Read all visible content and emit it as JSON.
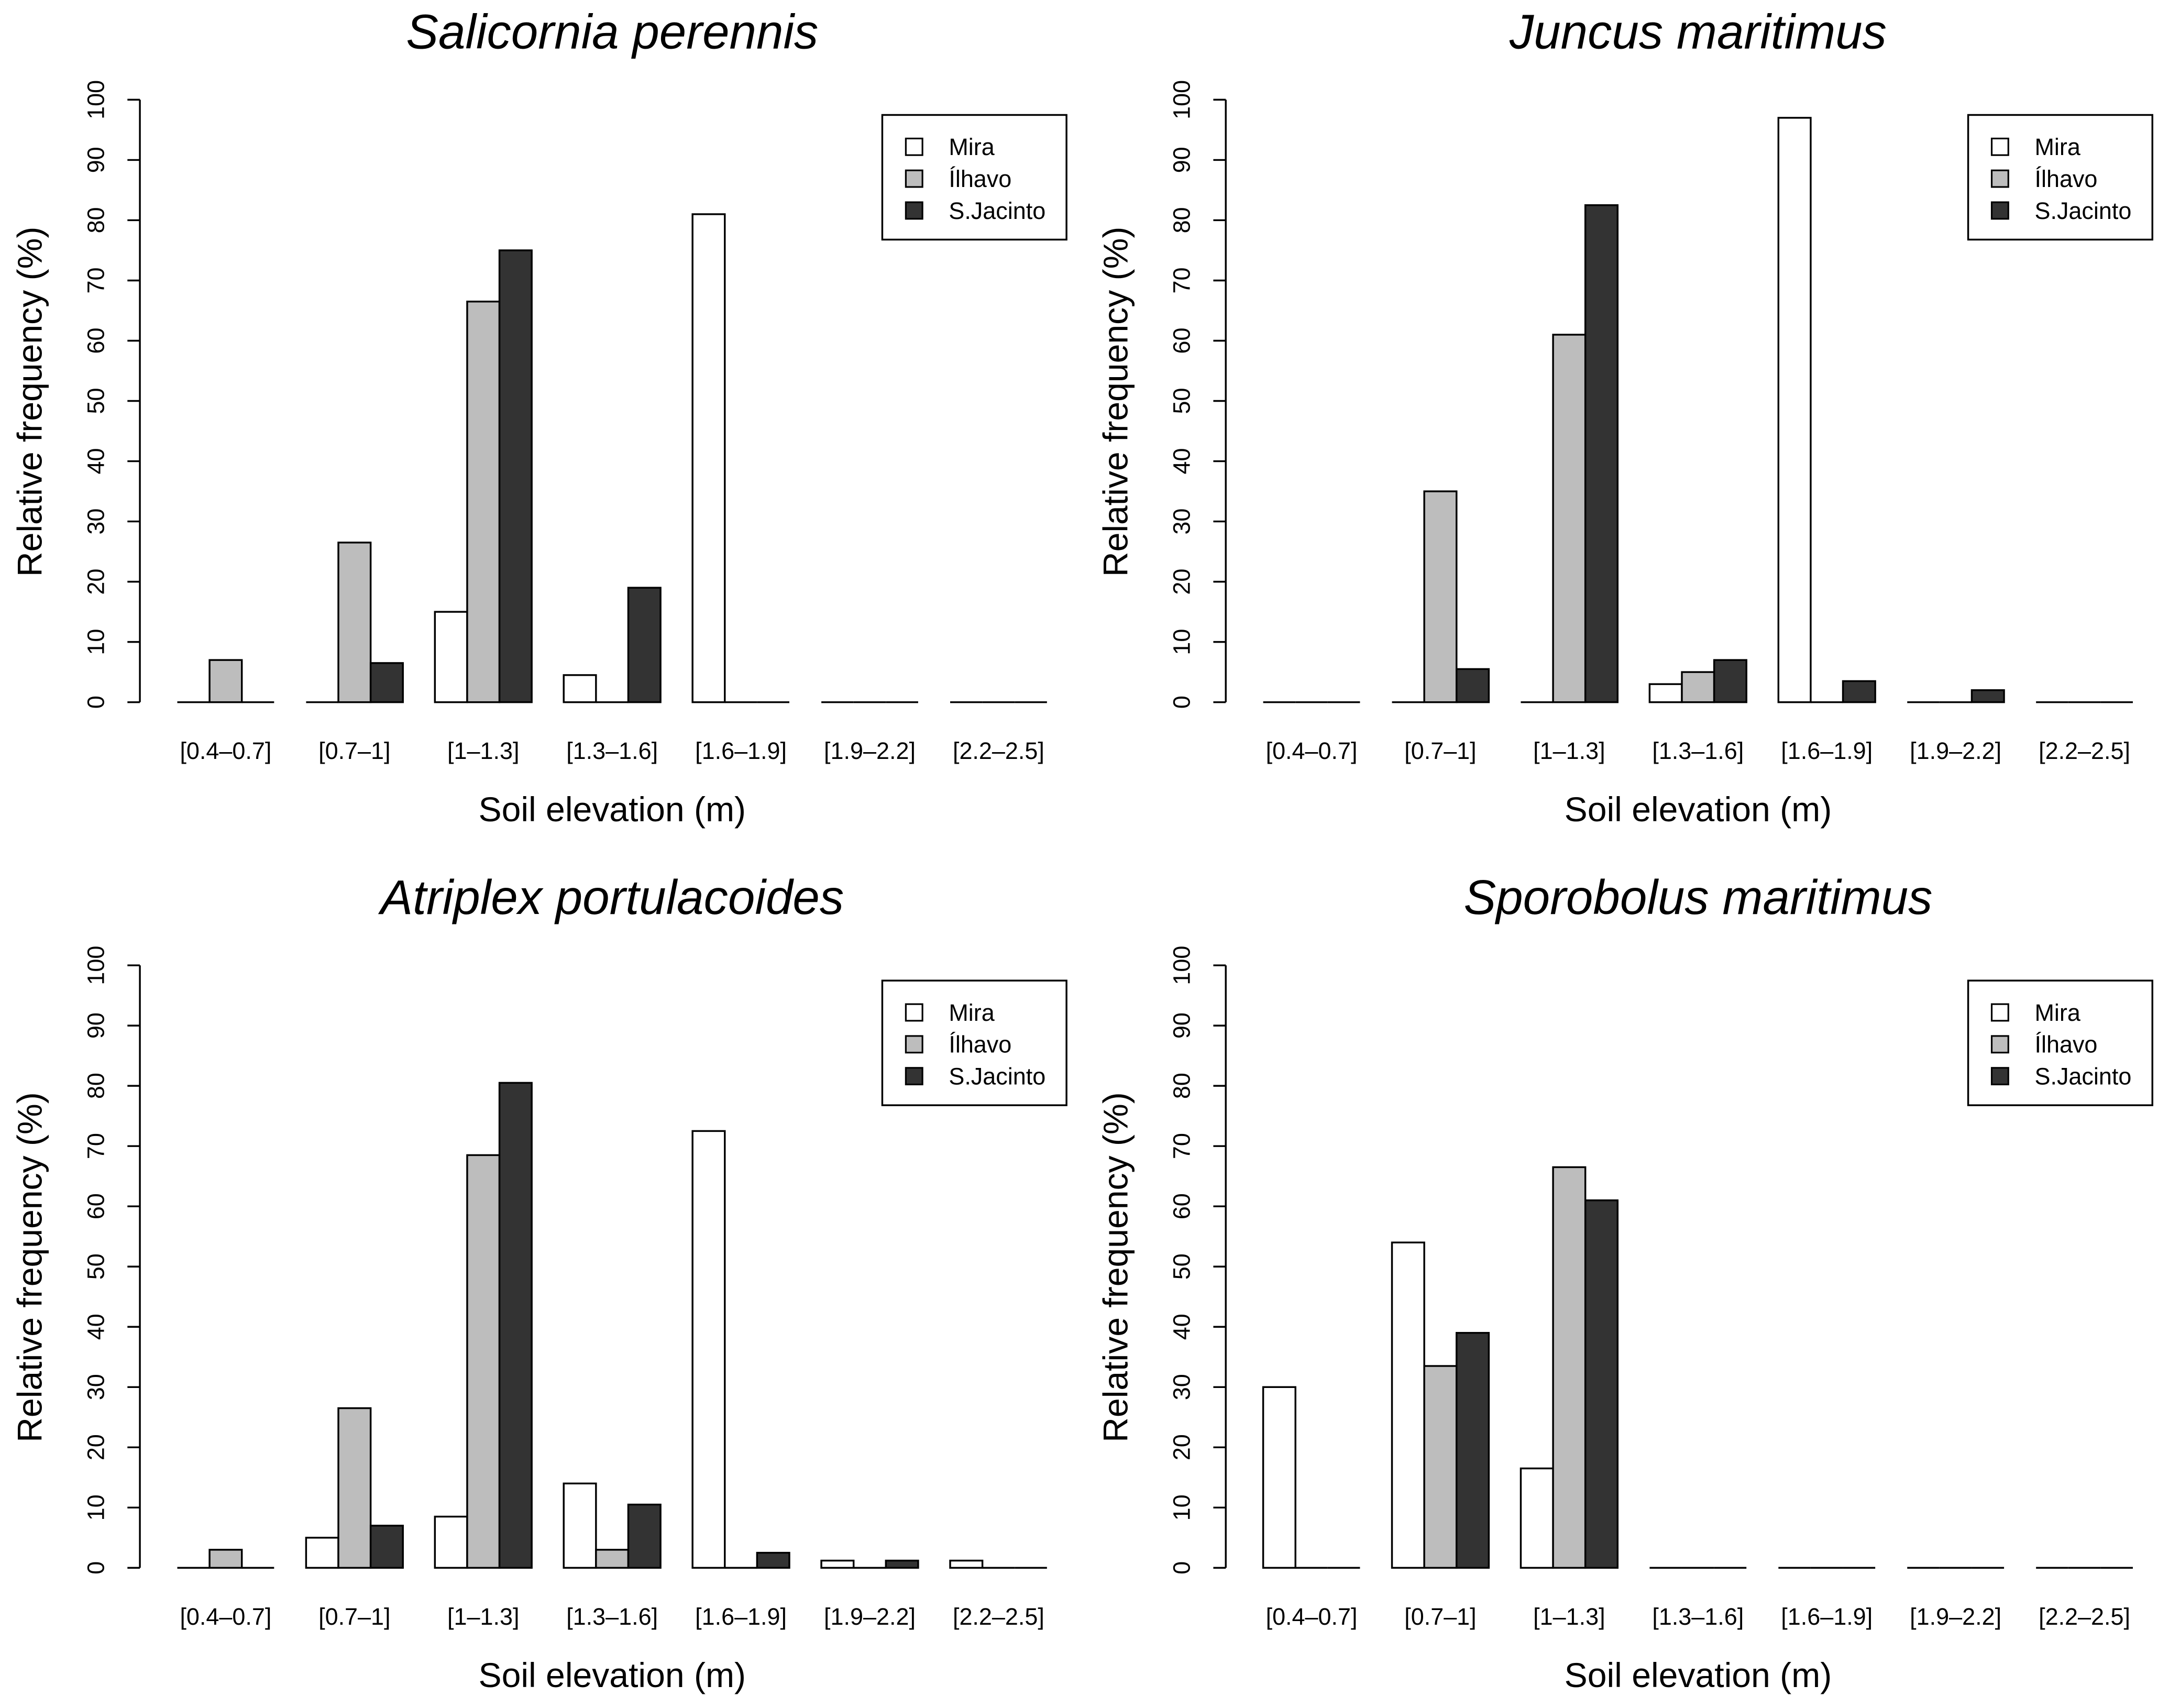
{
  "colors": {
    "Mira": "#ffffff",
    "Ílhavo": "#bdbdbd",
    "S.Jacinto": "#333333",
    "stroke": "#000000"
  },
  "chart_data": [
    {
      "type": "bar",
      "title": "Salicornia perennis",
      "xlabel": "Soil elevation (m)",
      "ylabel": "Relative frequency (%)",
      "ylim": [
        0,
        100
      ],
      "yticks": [
        0,
        10,
        20,
        30,
        40,
        50,
        60,
        70,
        80,
        90,
        100
      ],
      "categories": [
        "[0.4–0.7]",
        "[0.7–1]",
        "[1–1.3]",
        "[1.3–1.6]",
        "[1.6–1.9]",
        "[1.9–2.2]",
        "[2.2–2.5]"
      ],
      "legend": "top-right",
      "series": [
        {
          "name": "Mira",
          "values": [
            0,
            0,
            15,
            4.5,
            81,
            0,
            0
          ]
        },
        {
          "name": "Ílhavo",
          "values": [
            7,
            26.5,
            66.5,
            0,
            0,
            0,
            0
          ]
        },
        {
          "name": "S.Jacinto",
          "values": [
            0,
            6.5,
            75,
            19,
            0,
            0,
            0
          ]
        }
      ]
    },
    {
      "type": "bar",
      "title": "Juncus maritimus",
      "xlabel": "Soil elevation (m)",
      "ylabel": "Relative frequency (%)",
      "ylim": [
        0,
        100
      ],
      "yticks": [
        0,
        10,
        20,
        30,
        40,
        50,
        60,
        70,
        80,
        90,
        100
      ],
      "categories": [
        "[0.4–0.7]",
        "[0.7–1]",
        "[1–1.3]",
        "[1.3–1.6]",
        "[1.6–1.9]",
        "[1.9–2.2]",
        "[2.2–2.5]"
      ],
      "legend": "top-right",
      "series": [
        {
          "name": "Mira",
          "values": [
            0,
            0,
            0,
            3,
            97,
            0,
            0
          ]
        },
        {
          "name": "Ílhavo",
          "values": [
            0,
            35,
            61,
            5,
            0,
            0,
            0
          ]
        },
        {
          "name": "S.Jacinto",
          "values": [
            0,
            5.5,
            82.5,
            7,
            3.5,
            2,
            0
          ]
        }
      ]
    },
    {
      "type": "bar",
      "title": "Atriplex portulacoides",
      "xlabel": "Soil elevation (m)",
      "ylabel": "Relative frequency (%)",
      "ylim": [
        0,
        100
      ],
      "yticks": [
        0,
        10,
        20,
        30,
        40,
        50,
        60,
        70,
        80,
        90,
        100
      ],
      "categories": [
        "[0.4–0.7]",
        "[0.7–1]",
        "[1–1.3]",
        "[1.3–1.6]",
        "[1.6–1.9]",
        "[1.9–2.2]",
        "[2.2–2.5]"
      ],
      "legend": "top-right",
      "series": [
        {
          "name": "Mira",
          "values": [
            0,
            5,
            8.5,
            14,
            72.5,
            1.2,
            1.2
          ]
        },
        {
          "name": "Ílhavo",
          "values": [
            3,
            26.5,
            68.5,
            3,
            0,
            0,
            0
          ]
        },
        {
          "name": "S.Jacinto",
          "values": [
            0,
            7,
            80.5,
            10.5,
            2.5,
            1.2,
            0
          ]
        }
      ]
    },
    {
      "type": "bar",
      "title": "Sporobolus maritimus",
      "xlabel": "Soil elevation (m)",
      "ylabel": "Relative frequency (%)",
      "ylim": [
        0,
        100
      ],
      "yticks": [
        0,
        10,
        20,
        30,
        40,
        50,
        60,
        70,
        80,
        90,
        100
      ],
      "categories": [
        "[0.4–0.7]",
        "[0.7–1]",
        "[1–1.3]",
        "[1.3–1.6]",
        "[1.6–1.9]",
        "[1.9–2.2]",
        "[2.2–2.5]"
      ],
      "legend": "top-right",
      "series": [
        {
          "name": "Mira",
          "values": [
            30,
            54,
            16.5,
            0,
            0,
            0,
            0
          ]
        },
        {
          "name": "Ílhavo",
          "values": [
            0,
            33.5,
            66.5,
            0,
            0,
            0,
            0
          ]
        },
        {
          "name": "S.Jacinto",
          "values": [
            0,
            39,
            61,
            0,
            0,
            0,
            0
          ]
        }
      ]
    }
  ]
}
